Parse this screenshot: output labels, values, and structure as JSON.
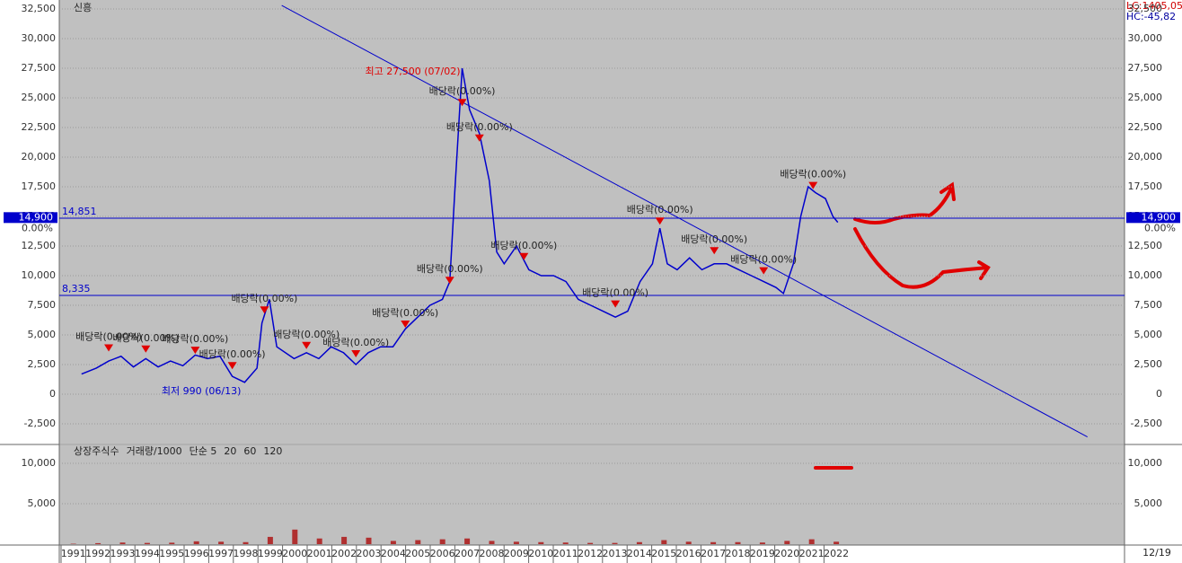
{
  "chart_data": [
    {
      "type": "line",
      "title": "신흥",
      "info": [
        "LC:1405,05",
        "HC:-45,82"
      ],
      "x": [
        1991.9,
        1992.5,
        1993.0,
        1993.5,
        1994.0,
        1994.5,
        1995.0,
        1995.5,
        1996.0,
        1996.5,
        1997.0,
        1997.5,
        1998.0,
        1998.5,
        1999.0,
        1999.2,
        1999.5,
        1999.8,
        2000.5,
        2001.0,
        2001.5,
        2002.0,
        2002.5,
        2003.0,
        2003.5,
        2004.0,
        2004.5,
        2005.0,
        2005.5,
        2006.0,
        2006.5,
        2006.8,
        2007.0,
        2007.3,
        2007.6,
        2008.0,
        2008.4,
        2008.7,
        2009.0,
        2009.5,
        2010.0,
        2010.5,
        2011.0,
        2011.5,
        2012.0,
        2012.5,
        2013.0,
        2013.5,
        2014.0,
        2014.5,
        2015.0,
        2015.3,
        2015.6,
        2016.0,
        2016.5,
        2017.0,
        2017.5,
        2018.0,
        2018.5,
        2019.0,
        2019.5,
        2020.0,
        2020.3,
        2020.7,
        2021.0,
        2021.3,
        2021.6,
        2022.0,
        2022.3,
        2022.5
      ],
      "values": [
        1700,
        2200,
        2800,
        3200,
        2300,
        3000,
        2300,
        2800,
        2400,
        3300,
        3000,
        3200,
        1500,
        1000,
        2200,
        6000,
        8000,
        4000,
        3000,
        3500,
        3000,
        4000,
        3500,
        2500,
        3500,
        4000,
        4000,
        5500,
        6500,
        7500,
        8000,
        9500,
        17000,
        27500,
        24000,
        22000,
        18000,
        12000,
        11000,
        12500,
        10500,
        10000,
        10000,
        9500,
        8000,
        7500,
        7000,
        6500,
        7000,
        9500,
        11000,
        14000,
        11000,
        10500,
        11500,
        10500,
        11000,
        11000,
        10500,
        10000,
        9500,
        9000,
        8500,
        11000,
        15000,
        17500,
        17000,
        16500,
        15000,
        14500
      ],
      "color": "#0000cc",
      "xlim": [
        1991,
        2034.1
      ],
      "ylim": [
        -2500,
        32500
      ],
      "yticks": [
        {
          "value": -2500,
          "label": "-2,500"
        },
        0,
        {
          "value": 2500,
          "label": "2,500"
        },
        {
          "value": 5000,
          "label": "5,000"
        },
        {
          "value": 7500,
          "label": "7,500"
        },
        {
          "value": 10000,
          "label": "10,000"
        },
        {
          "value": 12500,
          "label": "12,500"
        },
        {
          "value": 15000,
          "label": "15,000"
        },
        {
          "value": 17500,
          "label": "17,500"
        },
        {
          "value": 20000,
          "label": "20,000"
        },
        {
          "value": 22500,
          "label": "22,500"
        },
        {
          "value": 25000,
          "label": "25,000"
        },
        {
          "value": 27500,
          "label": "27,500"
        },
        {
          "value": 30000,
          "label": "30,000"
        },
        {
          "value": 32500,
          "label": "32,500"
        }
      ],
      "grid": true,
      "hlines": [
        {
          "value": 14851,
          "label": "14,851"
        },
        {
          "value": 8335,
          "label": "8,335"
        }
      ],
      "price_badge": {
        "value": 14900,
        "label": "14,900",
        "change": "0.00%"
      },
      "high": {
        "label": "최고 27,500 (07/02)",
        "x": 2007.3,
        "y": 27500
      },
      "low": {
        "label": "최저 990 (06/13)",
        "x": 1998.5,
        "y": 990
      },
      "trendline": {
        "x": [
          2000,
          2032.6
        ],
        "y": [
          32800,
          -3600
        ]
      },
      "dividends": {
        "label": "배당락(0.00%)",
        "x": [
          1993.0,
          1994.5,
          1996.5,
          1998.0,
          1999.3,
          2001.0,
          2003.0,
          2005.0,
          2006.8,
          2007.3,
          2008.0,
          2009.8,
          2013.5,
          2015.3,
          2017.5,
          2019.5,
          2021.5
        ],
        "y": [
          3300,
          3200,
          3100,
          1800,
          6500,
          3500,
          2800,
          5300,
          9000,
          24000,
          21000,
          11000,
          7000,
          14000,
          11500,
          9800,
          17000
        ]
      }
    },
    {
      "type": "bar",
      "legend": [
        {
          "name": "상장주식수",
          "color": "#e03030"
        },
        {
          "name": "거래량/1000",
          "color": "#2a9d9d"
        },
        {
          "name": "단순 5",
          "color": "#d020d0"
        },
        {
          "name": "20",
          "color": "#c8b400"
        },
        {
          "name": "60",
          "color": "#109010"
        },
        {
          "name": "120",
          "color": "#707070"
        }
      ],
      "categories": [
        "1991",
        "1992",
        "1993",
        "1994",
        "1995",
        "1996",
        "1997",
        "1998",
        "1999",
        "2000",
        "2001",
        "2002",
        "2003",
        "2004",
        "2005",
        "2006",
        "2007",
        "2008",
        "2009",
        "2010",
        "2011",
        "2012",
        "2013",
        "2014",
        "2015",
        "2016",
        "2017",
        "2018",
        "2019",
        "2020",
        "2021",
        "2022"
      ],
      "values": [
        50,
        120,
        200,
        150,
        180,
        350,
        300,
        250,
        900,
        1800,
        700,
        900,
        800,
        400,
        500,
        600,
        700,
        400,
        300,
        250,
        200,
        150,
        150,
        250,
        500,
        300,
        250,
        250,
        200,
        400,
        600,
        300
      ],
      "color": "#b03030",
      "ylim": [
        0,
        12333
      ],
      "yticks": [
        {
          "value": 5000,
          "label": "5,000"
        },
        {
          "value": 10000,
          "label": "10,000"
        }
      ],
      "date_label": "12/19"
    }
  ]
}
